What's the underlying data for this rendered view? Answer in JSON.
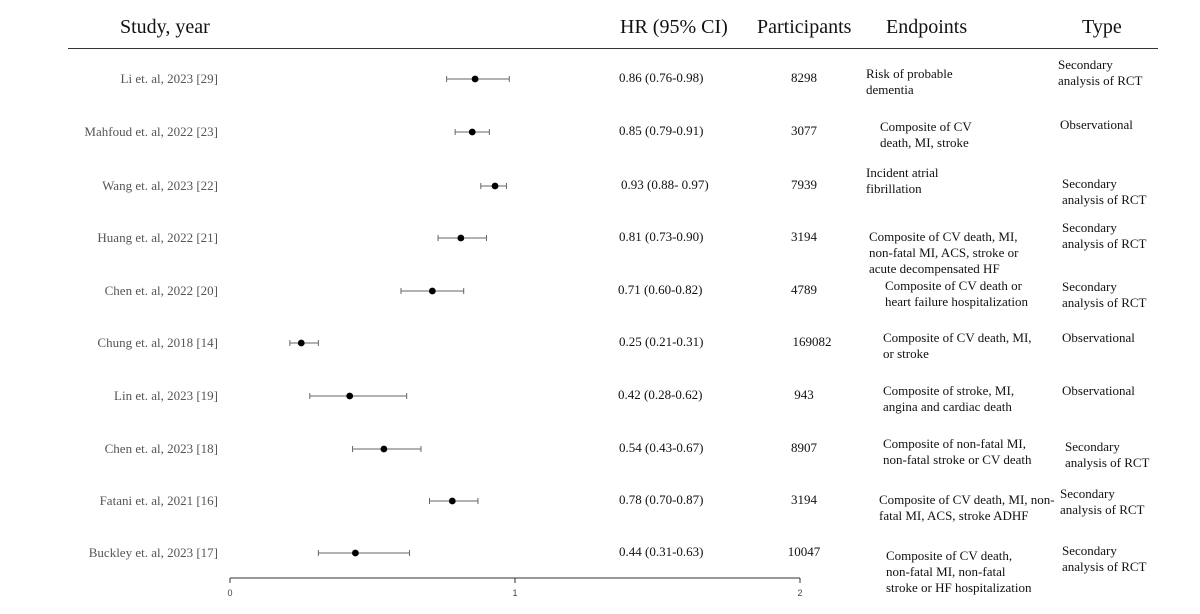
{
  "headers": {
    "study": "Study, year",
    "hr": "HR (95% CI)",
    "participants": "Participants",
    "endpoints": "Endpoints",
    "type": "Type"
  },
  "rows": [
    {
      "study": "Li et. al, 2023 [29]",
      "hr_text": "0.86 (0.76-0.98)",
      "participants": "8298",
      "endpoint": "Risk of probable\ndementia",
      "type": "Secondary\nanalysis of RCT"
    },
    {
      "study": "Mahfoud et. al, 2022 [23]",
      "hr_text": "0.85 (0.79-0.91)",
      "participants": "3077",
      "endpoint": "Composite of CV\ndeath, MI, stroke",
      "type": "Observational"
    },
    {
      "study": "Wang et. al, 2023 [22]",
      "hr_text": "0.93 (0.88- 0.97)",
      "participants": "7939",
      "endpoint": "Incident atrial\nfibrillation",
      "type": "Secondary\nanalysis of RCT"
    },
    {
      "study": "Huang et. al, 2022 [21]",
      "hr_text": "0.81 (0.73-0.90)",
      "participants": "3194",
      "endpoint": "Composite of CV death, MI,\nnon-fatal MI, ACS, stroke or\nacute decompensated HF",
      "type": "Secondary\nanalysis of RCT"
    },
    {
      "study": "Chen et. al, 2022 [20]",
      "hr_text": "0.71 (0.60-0.82)",
      "participants": "4789",
      "endpoint": "Composite of CV death or\nheart failure hospitalization",
      "type": "Secondary\nanalysis of RCT"
    },
    {
      "study": "Chung et. al, 2018 [14]",
      "hr_text": "0.25 (0.21-0.31)",
      "participants": "169082",
      "endpoint": "Composite of CV death, MI,\nor stroke",
      "type": "Observational"
    },
    {
      "study": "Lin et. al, 2023 [19]",
      "hr_text": "0.42 (0.28-0.62)",
      "participants": "943",
      "endpoint": "Composite of stroke, MI,\nangina and cardiac death",
      "type": "Observational"
    },
    {
      "study": "Chen et. al, 2023 [18]",
      "hr_text": "0.54 (0.43-0.67)",
      "participants": "8907",
      "endpoint": "Composite of non-fatal MI,\nnon-fatal stroke or CV death",
      "type": "Secondary\nanalysis of RCT"
    },
    {
      "study": "Fatani et. al, 2021 [16]",
      "hr_text": "0.78 (0.70-0.87)",
      "participants": "3194",
      "endpoint": "Composite of CV death, MI, non-\nfatal MI, ACS, stroke ADHF",
      "type": "Secondary\nanalysis of RCT"
    },
    {
      "study": "Buckley et. al, 2023 [17]",
      "hr_text": "0.44 (0.31-0.63)",
      "participants": "10047",
      "endpoint": "Composite of CV death,\nnon-fatal MI, non-fatal\nstroke or HF hospitalization",
      "type": "Secondary\nanalysis of RCT"
    }
  ],
  "chart_data": {
    "type": "forest",
    "title": "",
    "xlabel": "",
    "ylabel": "",
    "xlim": [
      0,
      2
    ],
    "xticks": [
      "0",
      "1",
      "2"
    ],
    "categories": [
      "Li et. al, 2023 [29]",
      "Mahfoud et. al, 2022 [23]",
      "Wang et. al, 2023 [22]",
      "Huang et. al, 2022 [21]",
      "Chen et. al, 2022 [20]",
      "Chung et. al, 2018 [14]",
      "Lin et. al, 2023 [19]",
      "Chen et. al, 2023 [18]",
      "Fatani et. al, 2021 [16]",
      "Buckley et. al, 2023 [17]"
    ],
    "estimates": [
      0.86,
      0.85,
      0.93,
      0.81,
      0.71,
      0.25,
      0.42,
      0.54,
      0.78,
      0.44
    ],
    "lower": [
      0.76,
      0.79,
      0.88,
      0.73,
      0.6,
      0.21,
      0.28,
      0.43,
      0.7,
      0.31
    ],
    "upper": [
      0.98,
      0.91,
      0.97,
      0.9,
      0.82,
      0.31,
      0.62,
      0.67,
      0.87,
      0.63
    ],
    "grid": false,
    "marker_color": "#000000",
    "ci_color": "#666666"
  }
}
